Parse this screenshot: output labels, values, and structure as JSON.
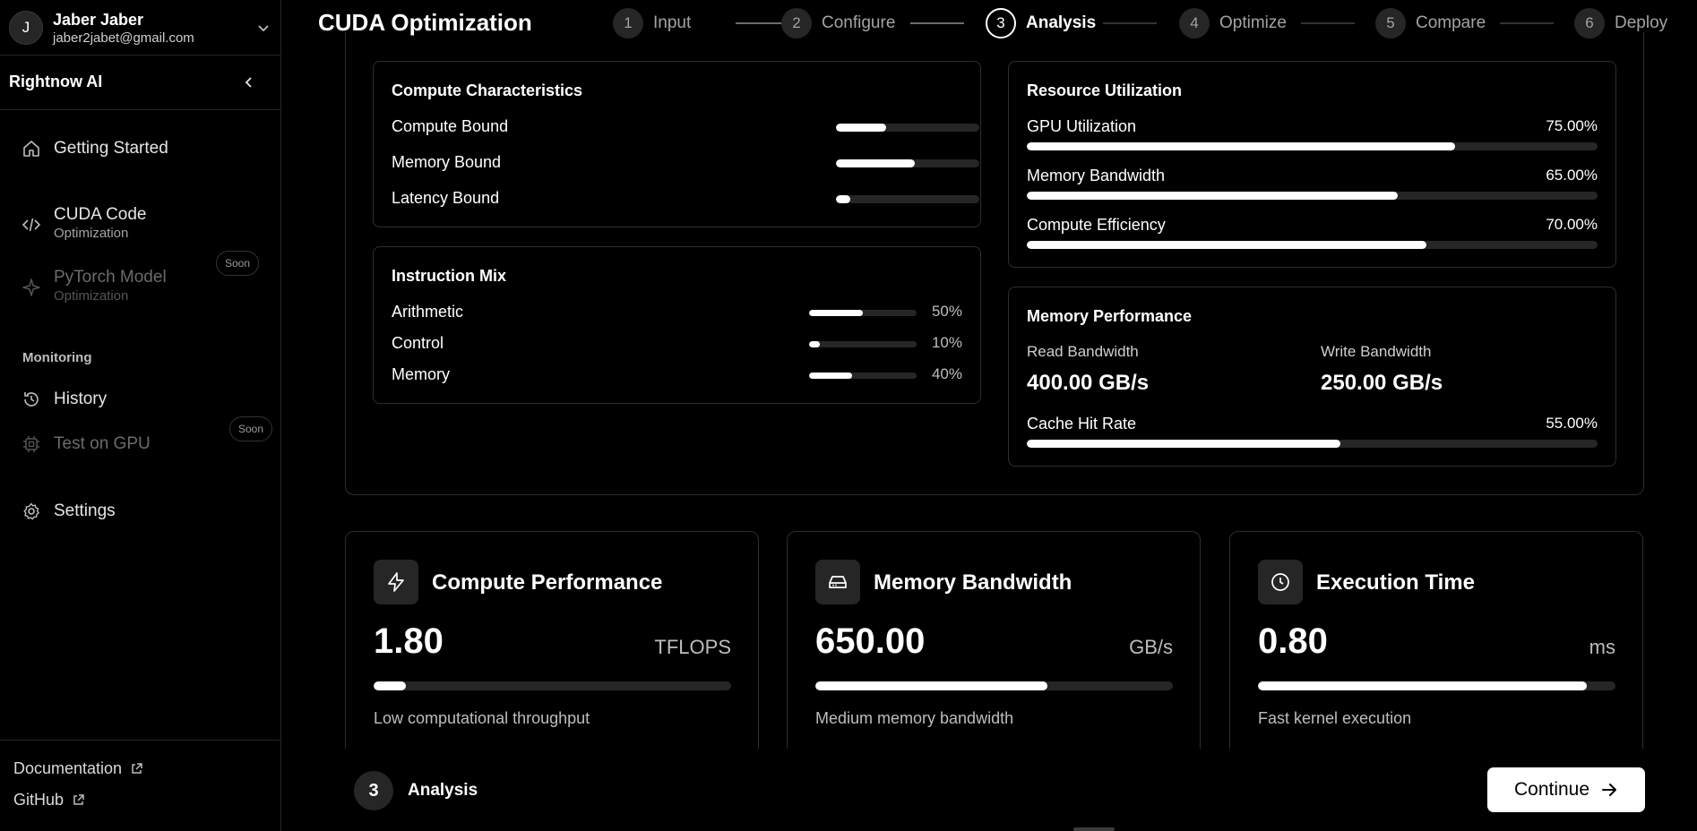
{
  "user": {
    "name": "Jaber Jaber",
    "email": "jaber2jabet@gmail.com",
    "initial": "J"
  },
  "brand": "Rightnow AI",
  "nav": {
    "getting_started": "Getting Started",
    "cuda": {
      "label": "CUDA Code",
      "sub": "Optimization"
    },
    "pytorch": {
      "label": "PyTorch Model",
      "sub": "Optimization",
      "badge": "Soon"
    },
    "monitoring_label": "Monitoring",
    "history": "History",
    "test_gpu": {
      "label": "Test on GPU",
      "badge": "Soon"
    },
    "settings": "Settings"
  },
  "footer": {
    "documentation": "Documentation",
    "github": "GitHub"
  },
  "page_title": "CUDA Optimization",
  "steps": [
    {
      "num": "1",
      "label": "Input"
    },
    {
      "num": "2",
      "label": "Configure"
    },
    {
      "num": "3",
      "label": "Analysis"
    },
    {
      "num": "4",
      "label": "Optimize"
    },
    {
      "num": "5",
      "label": "Compare"
    },
    {
      "num": "6",
      "label": "Deploy"
    }
  ],
  "active_step": 3,
  "compute_characteristics": {
    "title": "Compute Characteristics",
    "rows": [
      {
        "label": "Compute Bound",
        "level": 0.35
      },
      {
        "label": "Memory Bound",
        "level": 0.55
      },
      {
        "label": "Latency Bound",
        "level": 0.1
      }
    ]
  },
  "instruction_mix": {
    "title": "Instruction Mix",
    "rows": [
      {
        "label": "Arithmetic",
        "value": "50%",
        "level": 0.5
      },
      {
        "label": "Control",
        "value": "10%",
        "level": 0.1
      },
      {
        "label": "Memory",
        "value": "40%",
        "level": 0.4
      }
    ]
  },
  "resource_utilization": {
    "title": "Resource Utilization",
    "rows": [
      {
        "label": "GPU Utilization",
        "value": "75.00%",
        "level": 0.75
      },
      {
        "label": "Memory Bandwidth",
        "value": "65.00%",
        "level": 0.65
      },
      {
        "label": "Compute Efficiency",
        "value": "70.00%",
        "level": 0.7
      }
    ]
  },
  "memory_performance": {
    "title": "Memory Performance",
    "read_label": "Read Bandwidth",
    "read_value": "400.00 GB/s",
    "write_label": "Write Bandwidth",
    "write_value": "250.00 GB/s",
    "cache_label": "Cache Hit Rate",
    "cache_value": "55.00%",
    "cache_level": 0.55
  },
  "metrics": [
    {
      "icon": "bolt-icon",
      "title": "Compute Performance",
      "value": "1.80",
      "unit": "TFLOPS",
      "level": 0.09,
      "desc": "Low computational throughput"
    },
    {
      "icon": "hard-drive-icon",
      "title": "Memory Bandwidth",
      "value": "650.00",
      "unit": "GB/s",
      "level": 0.65,
      "desc": "Medium memory bandwidth"
    },
    {
      "icon": "clock-icon",
      "title": "Execution Time",
      "value": "0.80",
      "unit": "ms",
      "level": 0.92,
      "desc": "Fast kernel execution"
    }
  ],
  "bottom": {
    "step_num": "3",
    "step_label": "Analysis",
    "continue_label": "Continue"
  }
}
